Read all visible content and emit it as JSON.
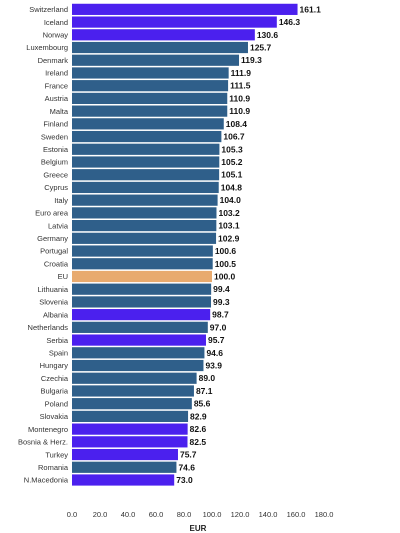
{
  "chart_data": {
    "type": "bar",
    "orientation": "horizontal",
    "xlabel": "EUR",
    "xlim": [
      0,
      180
    ],
    "xticks": [
      "0.0",
      "20.0",
      "40.0",
      "60.0",
      "80.0",
      "100.0",
      "120.0",
      "140.0",
      "160.0",
      "180.0"
    ],
    "grid": false,
    "colors": {
      "eu_member": "#2f5f8a",
      "non_eu": "#4b20ee",
      "eu_average": "#e8aa6e"
    },
    "bars": [
      {
        "label": "Switzerland",
        "value": 161.1,
        "value_label": "161.1",
        "group": "non_eu"
      },
      {
        "label": "Iceland",
        "value": 146.3,
        "value_label": "146.3",
        "group": "non_eu"
      },
      {
        "label": "Norway",
        "value": 130.6,
        "value_label": "130.6",
        "group": "non_eu"
      },
      {
        "label": "Luxembourg",
        "value": 125.7,
        "value_label": "125.7",
        "group": "eu_member"
      },
      {
        "label": "Denmark",
        "value": 119.3,
        "value_label": "119.3",
        "group": "eu_member"
      },
      {
        "label": "Ireland",
        "value": 111.9,
        "value_label": "111.9",
        "group": "eu_member"
      },
      {
        "label": "France",
        "value": 111.5,
        "value_label": "111.5",
        "group": "eu_member"
      },
      {
        "label": "Austria",
        "value": 110.9,
        "value_label": "110.9",
        "group": "eu_member"
      },
      {
        "label": "Malta",
        "value": 110.9,
        "value_label": "110.9",
        "group": "eu_member"
      },
      {
        "label": "Finland",
        "value": 108.4,
        "value_label": "108.4",
        "group": "eu_member"
      },
      {
        "label": "Sweden",
        "value": 106.7,
        "value_label": "106.7",
        "group": "eu_member"
      },
      {
        "label": "Estonia",
        "value": 105.3,
        "value_label": "105.3",
        "group": "eu_member"
      },
      {
        "label": "Belgium",
        "value": 105.2,
        "value_label": "105.2",
        "group": "eu_member"
      },
      {
        "label": "Greece",
        "value": 105.1,
        "value_label": "105.1",
        "group": "eu_member"
      },
      {
        "label": "Cyprus",
        "value": 104.8,
        "value_label": "104.8",
        "group": "eu_member"
      },
      {
        "label": "Italy",
        "value": 104.0,
        "value_label": "104.0",
        "group": "eu_member"
      },
      {
        "label": "Euro area",
        "value": 103.2,
        "value_label": "103.2",
        "group": "eu_member"
      },
      {
        "label": "Latvia",
        "value": 103.1,
        "value_label": "103.1",
        "group": "eu_member"
      },
      {
        "label": "Germany",
        "value": 102.9,
        "value_label": "102.9",
        "group": "eu_member"
      },
      {
        "label": "Portugal",
        "value": 100.6,
        "value_label": "100.6",
        "group": "eu_member"
      },
      {
        "label": "Croatia",
        "value": 100.5,
        "value_label": "100.5",
        "group": "eu_member"
      },
      {
        "label": "EU",
        "value": 100.0,
        "value_label": "100.0",
        "group": "eu_average"
      },
      {
        "label": "Lithuania",
        "value": 99.4,
        "value_label": "99.4",
        "group": "eu_member"
      },
      {
        "label": "Slovenia",
        "value": 99.3,
        "value_label": "99.3",
        "group": "eu_member"
      },
      {
        "label": "Albania",
        "value": 98.7,
        "value_label": "98.7",
        "group": "non_eu"
      },
      {
        "label": "Netherlands",
        "value": 97.0,
        "value_label": "97.0",
        "group": "eu_member"
      },
      {
        "label": "Serbia",
        "value": 95.7,
        "value_label": "95.7",
        "group": "non_eu"
      },
      {
        "label": "Spain",
        "value": 94.6,
        "value_label": "94.6",
        "group": "eu_member"
      },
      {
        "label": "Hungary",
        "value": 93.9,
        "value_label": "93.9",
        "group": "eu_member"
      },
      {
        "label": "Czechia",
        "value": 89.0,
        "value_label": "89.0",
        "group": "eu_member"
      },
      {
        "label": "Bulgaria",
        "value": 87.1,
        "value_label": "87.1",
        "group": "eu_member"
      },
      {
        "label": "Poland",
        "value": 85.6,
        "value_label": "85.6",
        "group": "eu_member"
      },
      {
        "label": "Slovakia",
        "value": 82.9,
        "value_label": "82.9",
        "group": "eu_member"
      },
      {
        "label": "Montenegro",
        "value": 82.6,
        "value_label": "82.6",
        "group": "non_eu"
      },
      {
        "label": "Bosnia & Herz.",
        "value": 82.5,
        "value_label": "82.5",
        "group": "non_eu"
      },
      {
        "label": "Turkey",
        "value": 75.7,
        "value_label": "75.7",
        "group": "non_eu"
      },
      {
        "label": "Romania",
        "value": 74.6,
        "value_label": "74.6",
        "group": "eu_member"
      },
      {
        "label": "N.Macedonia",
        "value": 73.0,
        "value_label": "73.0",
        "group": "non_eu"
      }
    ]
  }
}
